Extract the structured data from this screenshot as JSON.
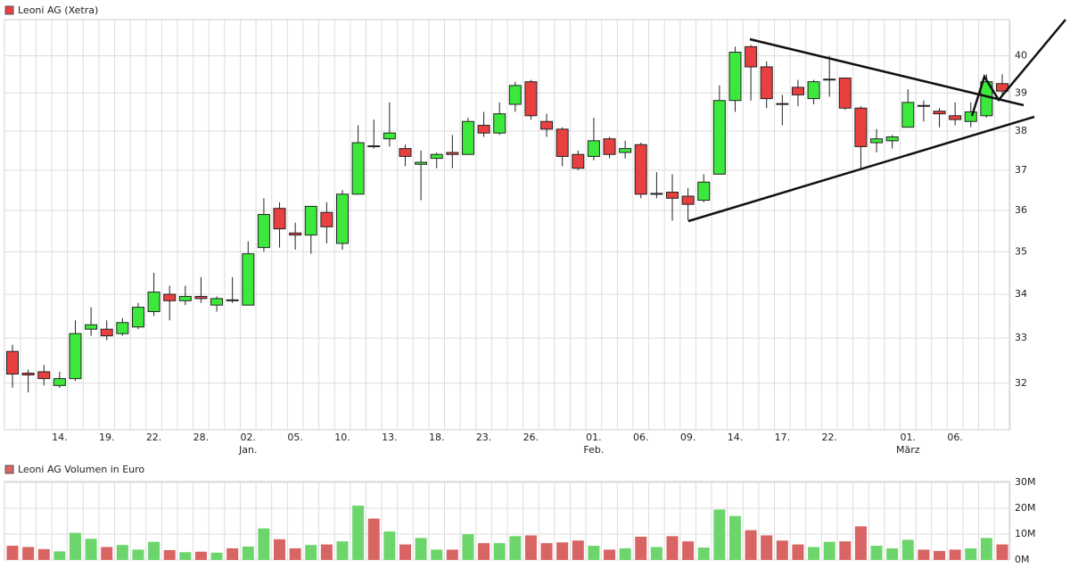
{
  "chart_data": [
    {
      "type": "candlestick",
      "name": "Leoni AG (Xetra)",
      "categories": [
        null,
        null,
        null,
        "14.",
        null,
        null,
        "19.",
        null,
        null,
        "22.",
        null,
        null,
        "28.",
        null,
        null,
        "02.",
        null,
        null,
        "05.",
        null,
        null,
        "10.",
        null,
        null,
        "13.",
        null,
        null,
        "18.",
        null,
        null,
        "23.",
        null,
        null,
        "26.",
        null,
        null,
        null,
        "01.",
        null,
        null,
        "06.",
        null,
        null,
        "09.",
        null,
        null,
        "14.",
        null,
        null,
        "17.",
        null,
        null,
        "22.",
        null,
        null,
        null,
        null,
        "01.",
        null,
        null,
        "06.",
        null,
        null,
        null
      ],
      "category_sublabels": [
        null,
        null,
        null,
        null,
        null,
        null,
        null,
        null,
        null,
        null,
        null,
        null,
        null,
        null,
        null,
        "Jan.",
        null,
        null,
        null,
        null,
        null,
        null,
        null,
        null,
        null,
        null,
        null,
        null,
        null,
        null,
        null,
        null,
        null,
        null,
        null,
        null,
        null,
        "Feb.",
        null,
        null,
        null,
        null,
        null,
        null,
        null,
        null,
        null,
        null,
        null,
        null,
        null,
        null,
        null,
        null,
        null,
        null,
        null,
        "März",
        null,
        null,
        null,
        null,
        null,
        null
      ],
      "open": [
        32.7,
        32.22,
        32.25,
        31.95,
        32.1,
        33.2,
        33.2,
        33.1,
        33.25,
        33.6,
        34.0,
        33.85,
        33.95,
        33.75,
        33.87,
        33.75,
        35.1,
        36.05,
        35.45,
        35.4,
        35.95,
        35.2,
        36.4,
        37.62,
        37.8,
        37.55,
        37.15,
        37.3,
        37.45,
        37.4,
        38.15,
        37.95,
        38.7,
        39.3,
        38.25,
        38.05,
        37.4,
        37.35,
        37.8,
        37.45,
        37.65,
        36.4,
        36.45,
        36.35,
        36.25,
        36.9,
        38.8,
        40.25,
        39.7,
        38.72,
        39.15,
        38.85,
        39.35,
        39.4,
        38.6,
        37.7,
        37.75,
        38.1,
        38.67,
        38.52,
        38.4,
        38.25,
        38.4,
        39.25
      ],
      "high": [
        32.85,
        32.3,
        32.4,
        32.25,
        33.4,
        33.7,
        33.4,
        33.45,
        33.8,
        34.5,
        34.2,
        34.2,
        34.4,
        33.95,
        34.4,
        35.25,
        36.3,
        36.2,
        35.7,
        36.1,
        36.2,
        36.5,
        38.15,
        38.3,
        38.75,
        37.65,
        37.5,
        37.45,
        37.9,
        38.35,
        38.5,
        38.75,
        39.3,
        39.35,
        38.45,
        38.1,
        37.5,
        38.35,
        37.85,
        37.75,
        37.7,
        36.95,
        36.9,
        36.55,
        36.9,
        39.2,
        40.25,
        40.3,
        39.85,
        38.95,
        39.35,
        39.35,
        40.0,
        39.4,
        38.65,
        38.05,
        37.9,
        39.1,
        38.8,
        38.6,
        38.75,
        38.75,
        39.5,
        39.5
      ],
      "low": [
        31.9,
        31.8,
        31.95,
        31.9,
        32.05,
        33.05,
        32.95,
        33.05,
        33.2,
        33.5,
        33.4,
        33.75,
        33.8,
        33.6,
        33.8,
        33.75,
        35.0,
        35.1,
        35.05,
        34.95,
        35.2,
        35.05,
        36.4,
        37.55,
        37.6,
        37.1,
        36.25,
        37.05,
        37.05,
        37.4,
        37.85,
        37.9,
        38.5,
        38.3,
        37.85,
        37.1,
        37.0,
        37.25,
        37.3,
        37.3,
        36.3,
        36.3,
        35.75,
        35.75,
        36.2,
        36.9,
        38.5,
        38.8,
        38.6,
        38.15,
        38.65,
        38.7,
        38.9,
        38.55,
        37.05,
        37.45,
        37.55,
        38.1,
        38.25,
        38.1,
        38.15,
        38.1,
        38.35,
        38.95
      ],
      "close": [
        32.2,
        32.18,
        32.1,
        32.1,
        33.1,
        33.3,
        33.05,
        33.35,
        33.7,
        34.05,
        33.85,
        33.95,
        33.9,
        33.9,
        33.85,
        34.95,
        35.9,
        35.55,
        35.4,
        36.1,
        35.6,
        36.4,
        37.7,
        37.6,
        37.95,
        37.35,
        37.2,
        37.4,
        37.4,
        38.25,
        37.95,
        38.45,
        39.2,
        38.4,
        38.05,
        37.35,
        37.05,
        37.75,
        37.4,
        37.55,
        36.4,
        36.42,
        36.3,
        36.15,
        36.7,
        38.8,
        40.1,
        39.7,
        38.85,
        38.7,
        38.95,
        39.3,
        39.37,
        38.6,
        37.6,
        37.8,
        37.85,
        38.75,
        38.65,
        38.45,
        38.3,
        38.5,
        39.3,
        39.05
      ],
      "up_color": "#3de83d",
      "down_color": "#e84040",
      "ylim": [
        31,
        41
      ],
      "yticks": [
        32,
        33,
        34,
        35,
        36,
        37,
        38,
        39,
        40
      ],
      "log_scale": true,
      "grid": true
    },
    {
      "type": "bar",
      "name": "Leoni AG Volumen in Euro",
      "values": [
        5.5,
        5,
        4.2,
        3.3,
        10.5,
        8.2,
        5,
        5.8,
        4,
        7,
        3.8,
        3,
        3.2,
        2.8,
        4.5,
        5.2,
        12.2,
        8,
        4.5,
        5.8,
        6,
        7.2,
        21,
        16,
        11,
        6,
        8.5,
        4,
        4,
        10,
        6.5,
        6.5,
        9.2,
        9.5,
        6.5,
        6.8,
        7.5,
        5.5,
        4,
        4.5,
        9,
        5,
        9.2,
        7.2,
        4.8,
        19.5,
        17,
        11.5,
        9.5,
        7.5,
        6,
        5,
        7,
        7.2,
        13,
        5.5,
        4.5,
        7.8,
        4,
        3.5,
        4,
        4.5,
        8.5,
        6
      ],
      "up_color": "#6cd66c",
      "down_color": "#d96464",
      "ylim": [
        0,
        30
      ],
      "yticks": [
        {
          "value": 0,
          "label": "0M"
        },
        {
          "value": 10,
          "label": "10M"
        },
        {
          "value": 20,
          "label": "20M"
        },
        {
          "value": 30,
          "label": "30M"
        }
      ],
      "grid": true
    }
  ]
}
